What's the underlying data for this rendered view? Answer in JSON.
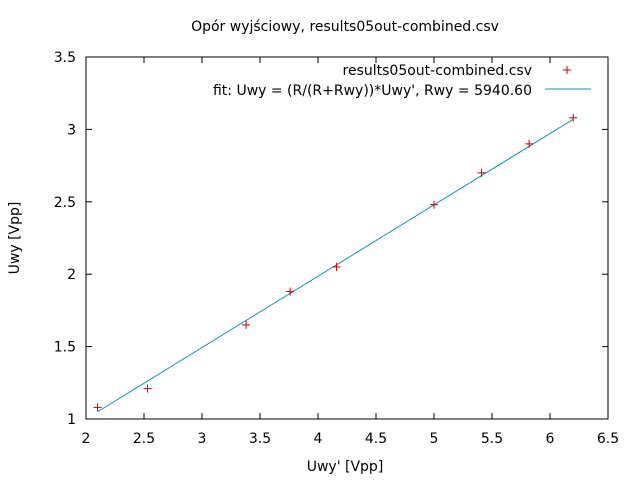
{
  "chart_data": {
    "type": "scatter",
    "title": "Opór wyjściowy, results05out-combined.csv",
    "xlabel": "Uwy' [Vpp]",
    "ylabel": "Uwy [Vpp]",
    "xlim": [
      2,
      6.5
    ],
    "ylim": [
      1,
      3.5
    ],
    "xticks": [
      "2",
      "2.5",
      "3",
      "3.5",
      "4",
      "4.5",
      "5",
      "5.5",
      "6",
      "6.5"
    ],
    "yticks": [
      "1",
      "1.5",
      "2",
      "2.5",
      "3",
      "3.5"
    ],
    "grid": false,
    "legend_position": "top-right",
    "series": [
      {
        "name": "results05out-combined.csv",
        "kind": "points",
        "color": "#cc0000",
        "x": [
          2.1,
          2.53,
          3.38,
          3.76,
          4.16,
          5.0,
          5.41,
          5.82,
          6.2
        ],
        "y": [
          1.08,
          1.21,
          1.65,
          1.88,
          2.05,
          2.48,
          2.7,
          2.9,
          3.08
        ]
      },
      {
        "name": "fit: Uwy = (R/(R+Rwy))*Uwy', Rwy = 5940.60",
        "kind": "line",
        "color": "#1a8fbf",
        "x": [
          2.1,
          6.2
        ],
        "y": [
          1.05,
          3.07
        ]
      }
    ]
  }
}
